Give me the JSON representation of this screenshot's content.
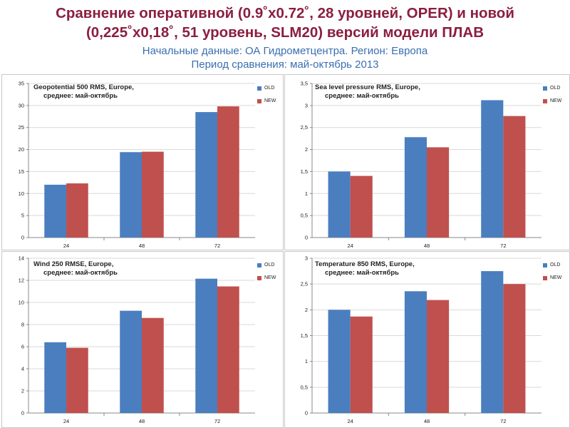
{
  "header": {
    "title_line1": "Сравнение оперативной (0.9˚x0.72˚, 28 уровней, OPER) и новой",
    "title_line2": "(0,225˚x0,18˚, 51 уровень, SLM20) версий модели ПЛАВ",
    "subtitle_line1": "Начальные данные: ОА Гидрометцентра. Регион: Европа",
    "subtitle_line2": "Период сравнения: май-октябрь 2013"
  },
  "colors": {
    "old": "#4a7ebf",
    "new": "#c0504d",
    "title": "#8b1e3f",
    "subtitle": "#3a6fb0"
  },
  "chart_data": [
    {
      "type": "bar",
      "title_line1": "Geopotential 500 RMS, Europe,",
      "title_line2": "среднее: май-октябрь",
      "categories": [
        "24",
        "48",
        "72"
      ],
      "series": [
        {
          "name": "OLD",
          "values": [
            12,
            19.4,
            28.5
          ]
        },
        {
          "name": "NEW",
          "values": [
            12.3,
            19.5,
            29.8
          ]
        }
      ],
      "ylim": [
        0,
        35
      ],
      "yticks": [
        0,
        5,
        10,
        15,
        20,
        25,
        30,
        35
      ],
      "ytick_labels": [
        "0",
        "5",
        "10",
        "15",
        "20",
        "25",
        "30",
        "35"
      ]
    },
    {
      "type": "bar",
      "title_line1": "Sea level pressure RMS, Europe,",
      "title_line2": "среднее: май-октябрь",
      "categories": [
        "24",
        "48",
        "72"
      ],
      "series": [
        {
          "name": "OLD",
          "values": [
            1.5,
            2.28,
            3.12
          ]
        },
        {
          "name": "NEW",
          "values": [
            1.4,
            2.05,
            2.76
          ]
        }
      ],
      "ylim": [
        0,
        3.5
      ],
      "yticks": [
        0,
        0.5,
        1,
        1.5,
        2,
        2.5,
        3,
        3.5
      ],
      "ytick_labels": [
        "0",
        "0,5",
        "1",
        "1,5",
        "2",
        "2,5",
        "3",
        "3,5"
      ]
    },
    {
      "type": "bar",
      "title_line1": "Wind 250 RMSE, Europe,",
      "title_line2": "среднее: май-октябрь",
      "categories": [
        "24",
        "48",
        "72"
      ],
      "series": [
        {
          "name": "OLD",
          "values": [
            6.4,
            9.25,
            12.15
          ]
        },
        {
          "name": "NEW",
          "values": [
            5.9,
            8.6,
            11.45
          ]
        }
      ],
      "ylim": [
        0,
        14
      ],
      "yticks": [
        0,
        2,
        4,
        6,
        8,
        10,
        12,
        14
      ],
      "ytick_labels": [
        "0",
        "2",
        "4",
        "6",
        "8",
        "10",
        "12",
        "14"
      ]
    },
    {
      "type": "bar",
      "title_line1": "Temperature 850 RMS, Europe,",
      "title_line2": "среднее: май-октябрь",
      "categories": [
        "24",
        "48",
        "72"
      ],
      "series": [
        {
          "name": "OLD",
          "values": [
            2.0,
            2.36,
            2.75
          ]
        },
        {
          "name": "NEW",
          "values": [
            1.87,
            2.19,
            2.5
          ]
        }
      ],
      "ylim": [
        0,
        3
      ],
      "yticks": [
        0,
        0.5,
        1,
        1.5,
        2,
        2.5,
        3
      ],
      "ytick_labels": [
        "0",
        "0,5",
        "1",
        "1,5",
        "2",
        "2,5",
        "3"
      ]
    }
  ]
}
